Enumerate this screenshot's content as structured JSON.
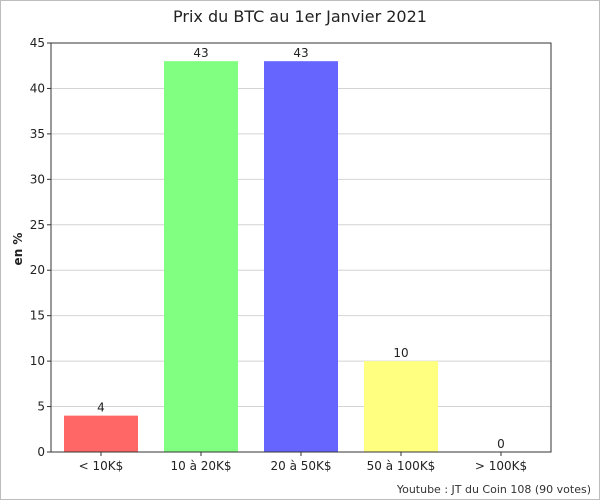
{
  "chart_data": {
    "type": "bar",
    "title": "Prix du BTC au 1er Janvier 2021",
    "ylabel": "en %",
    "xlabel": "",
    "categories": [
      "< 10K$",
      "10 à 20K$",
      "20 à 50K$",
      "50 à 100K$",
      "> 100K$"
    ],
    "values": [
      4,
      43,
      43,
      10,
      0
    ],
    "data_labels": [
      "4",
      "43",
      "43",
      "10",
      "0"
    ],
    "colors": [
      "#ff6666",
      "#80ff80",
      "#6666ff",
      "#ffff80",
      "#ff99cc"
    ],
    "ylim": [
      0,
      45
    ],
    "yticks": [
      0,
      5,
      10,
      15,
      20,
      25,
      30,
      35,
      40,
      45
    ],
    "grid": true,
    "legend": "none"
  },
  "footer": {
    "credit": "Youtube : JT du Coin 108 (90 votes)"
  }
}
